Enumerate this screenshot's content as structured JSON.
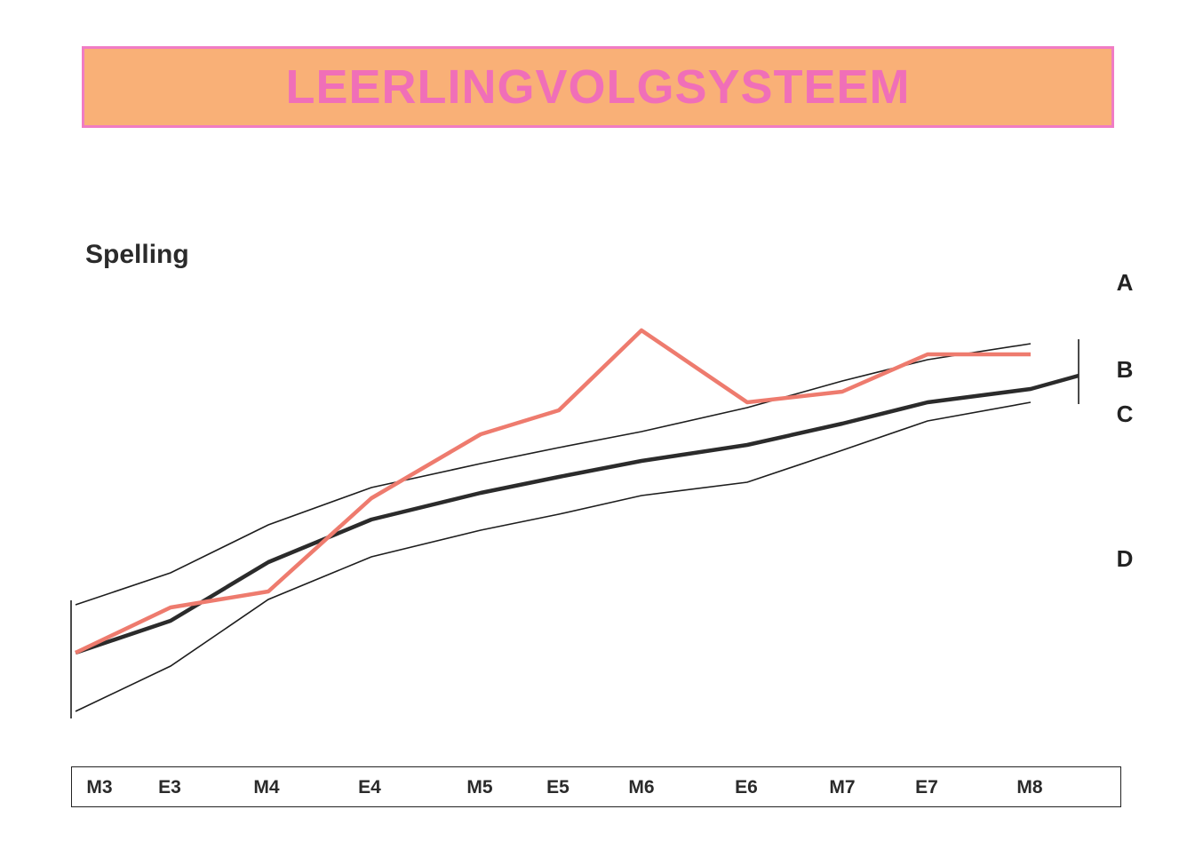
{
  "header": {
    "title": "LEERLINGVOLGSYSTEEM"
  },
  "subject": "Spelling",
  "colors": {
    "banner_fill": "#f9b077",
    "banner_border": "#f07cc4",
    "title": "#f06fb8",
    "student_line": "#ee7b6e",
    "norm_line": "#2b2b2b"
  },
  "chart_data": {
    "type": "line",
    "categories": [
      "M3",
      "E3",
      "M4",
      "E4",
      "M5",
      "E5",
      "M6",
      "E6",
      "M7",
      "E7",
      "M8"
    ],
    "level_labels": [
      "A",
      "B",
      "C",
      "D"
    ],
    "series": [
      {
        "values": [
          0.0,
          0.17,
          0.23,
          0.58,
          0.82,
          0.91,
          1.21,
          0.94,
          0.98,
          1.12,
          1.12
        ]
      },
      {
        "values": [
          0.0,
          0.12,
          0.34,
          0.5,
          0.6,
          0.66,
          0.72,
          0.78,
          0.86,
          0.94,
          0.99
        ]
      },
      {
        "values": [
          0.18,
          0.3,
          0.48,
          0.62,
          0.71,
          0.77,
          0.83,
          0.92,
          1.02,
          1.1,
          1.16
        ]
      },
      {
        "values": [
          -0.22,
          -0.05,
          0.2,
          0.36,
          0.46,
          0.52,
          0.59,
          0.64,
          0.76,
          0.87,
          0.94
        ]
      }
    ]
  }
}
